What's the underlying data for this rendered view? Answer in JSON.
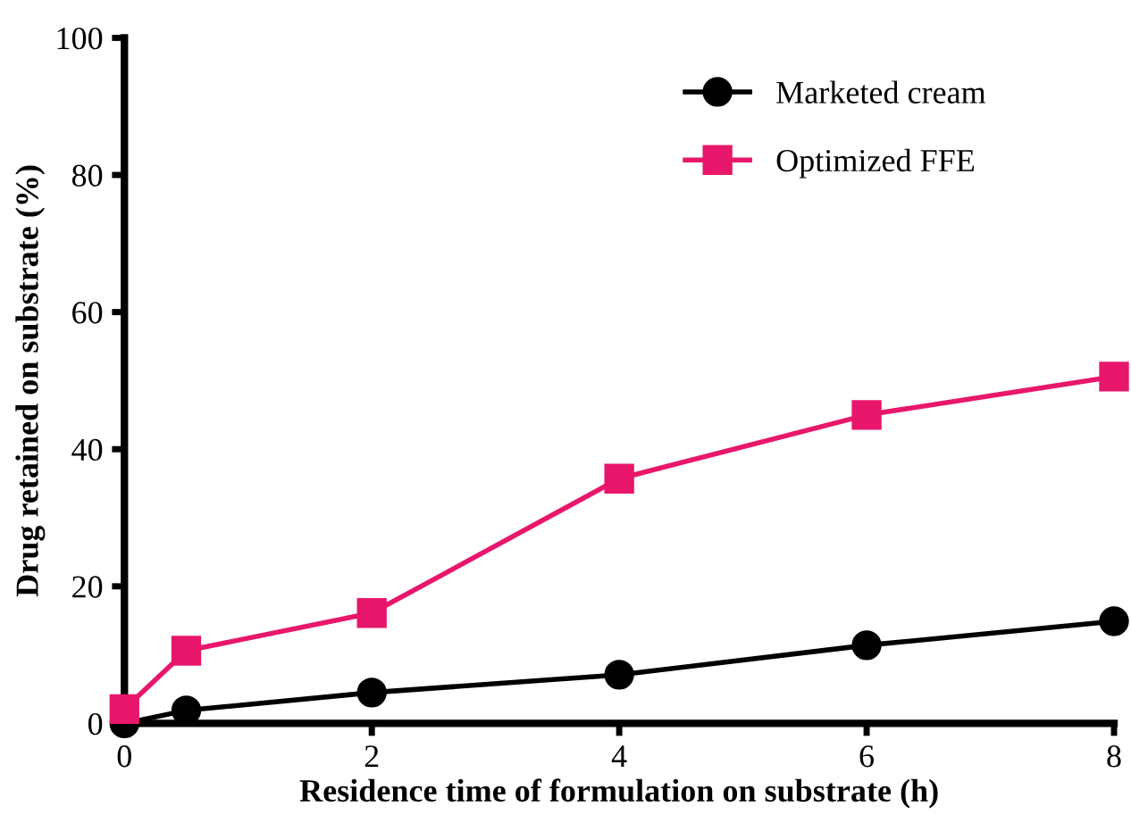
{
  "chart_data": {
    "type": "line",
    "xlabel": "Residence time of formulation on substrate (h)",
    "ylabel": "Drug retained on substrate (%)",
    "x": [
      0,
      0.5,
      2,
      4,
      6,
      8
    ],
    "series": [
      {
        "name": "Marketed cream",
        "color": "#000000",
        "marker": "circle",
        "values": [
          0,
          1.9,
          4.5,
          7.1,
          11.4,
          14.9
        ]
      },
      {
        "name": "Optimized FFE",
        "color": "#e8176b",
        "marker": "square",
        "values": [
          2.1,
          10.6,
          16.1,
          35.7,
          45.0,
          50.6
        ]
      }
    ],
    "xlim": [
      0,
      8
    ],
    "xticks": [
      0,
      2,
      4,
      6,
      8
    ],
    "ylim": [
      0,
      100
    ],
    "yticks": [
      0,
      20,
      40,
      60,
      80,
      100
    ],
    "grid": false,
    "legend": "top right",
    "line_style": "solid"
  }
}
